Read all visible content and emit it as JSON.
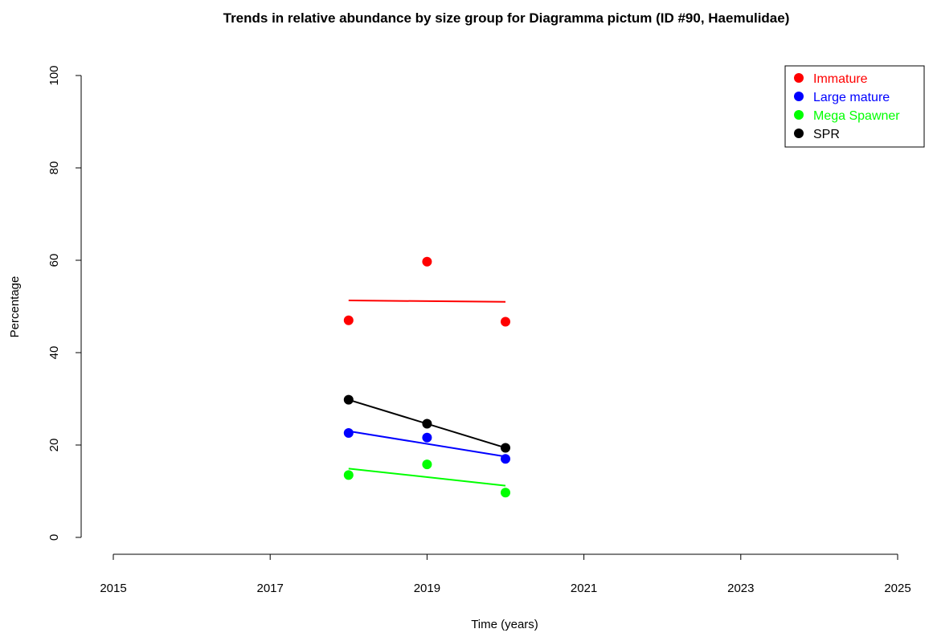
{
  "chart_data": {
    "type": "scatter",
    "title": "Trends in relative abundance by size group for Diagramma pictum (ID #90, Haemulidae)",
    "xlabel": "Time (years)",
    "ylabel": "Percentage",
    "xlim": [
      2015,
      2025
    ],
    "ylim": [
      0,
      100
    ],
    "x_ticks": [
      2015,
      2017,
      2019,
      2021,
      2023,
      2025
    ],
    "y_ticks": [
      0,
      20,
      40,
      60,
      80,
      100
    ],
    "grid": false,
    "legend_position": "top-right",
    "series": [
      {
        "name": "Immature",
        "color": "#ff0000",
        "x": [
          2018,
          2019,
          2020
        ],
        "y": [
          47.0,
          59.7,
          46.7
        ],
        "trend": {
          "x": [
            2018,
            2020
          ],
          "y": [
            51.3,
            51.0
          ]
        }
      },
      {
        "name": "Large mature",
        "color": "#0000ff",
        "x": [
          2018,
          2019,
          2020
        ],
        "y": [
          22.6,
          21.6,
          17.0
        ],
        "trend": {
          "x": [
            2018,
            2020
          ],
          "y": [
            23.0,
            17.5
          ]
        }
      },
      {
        "name": "Mega Spawner",
        "color": "#00ff00",
        "x": [
          2018,
          2019,
          2020
        ],
        "y": [
          13.5,
          15.8,
          9.7
        ],
        "trend": {
          "x": [
            2018,
            2020
          ],
          "y": [
            14.9,
            11.2
          ]
        }
      },
      {
        "name": "SPR",
        "color": "#000000",
        "x": [
          2018,
          2019,
          2020
        ],
        "y": [
          29.8,
          24.6,
          19.4
        ],
        "trend": {
          "x": [
            2018,
            2020
          ],
          "y": [
            29.8,
            19.4
          ]
        }
      }
    ]
  }
}
